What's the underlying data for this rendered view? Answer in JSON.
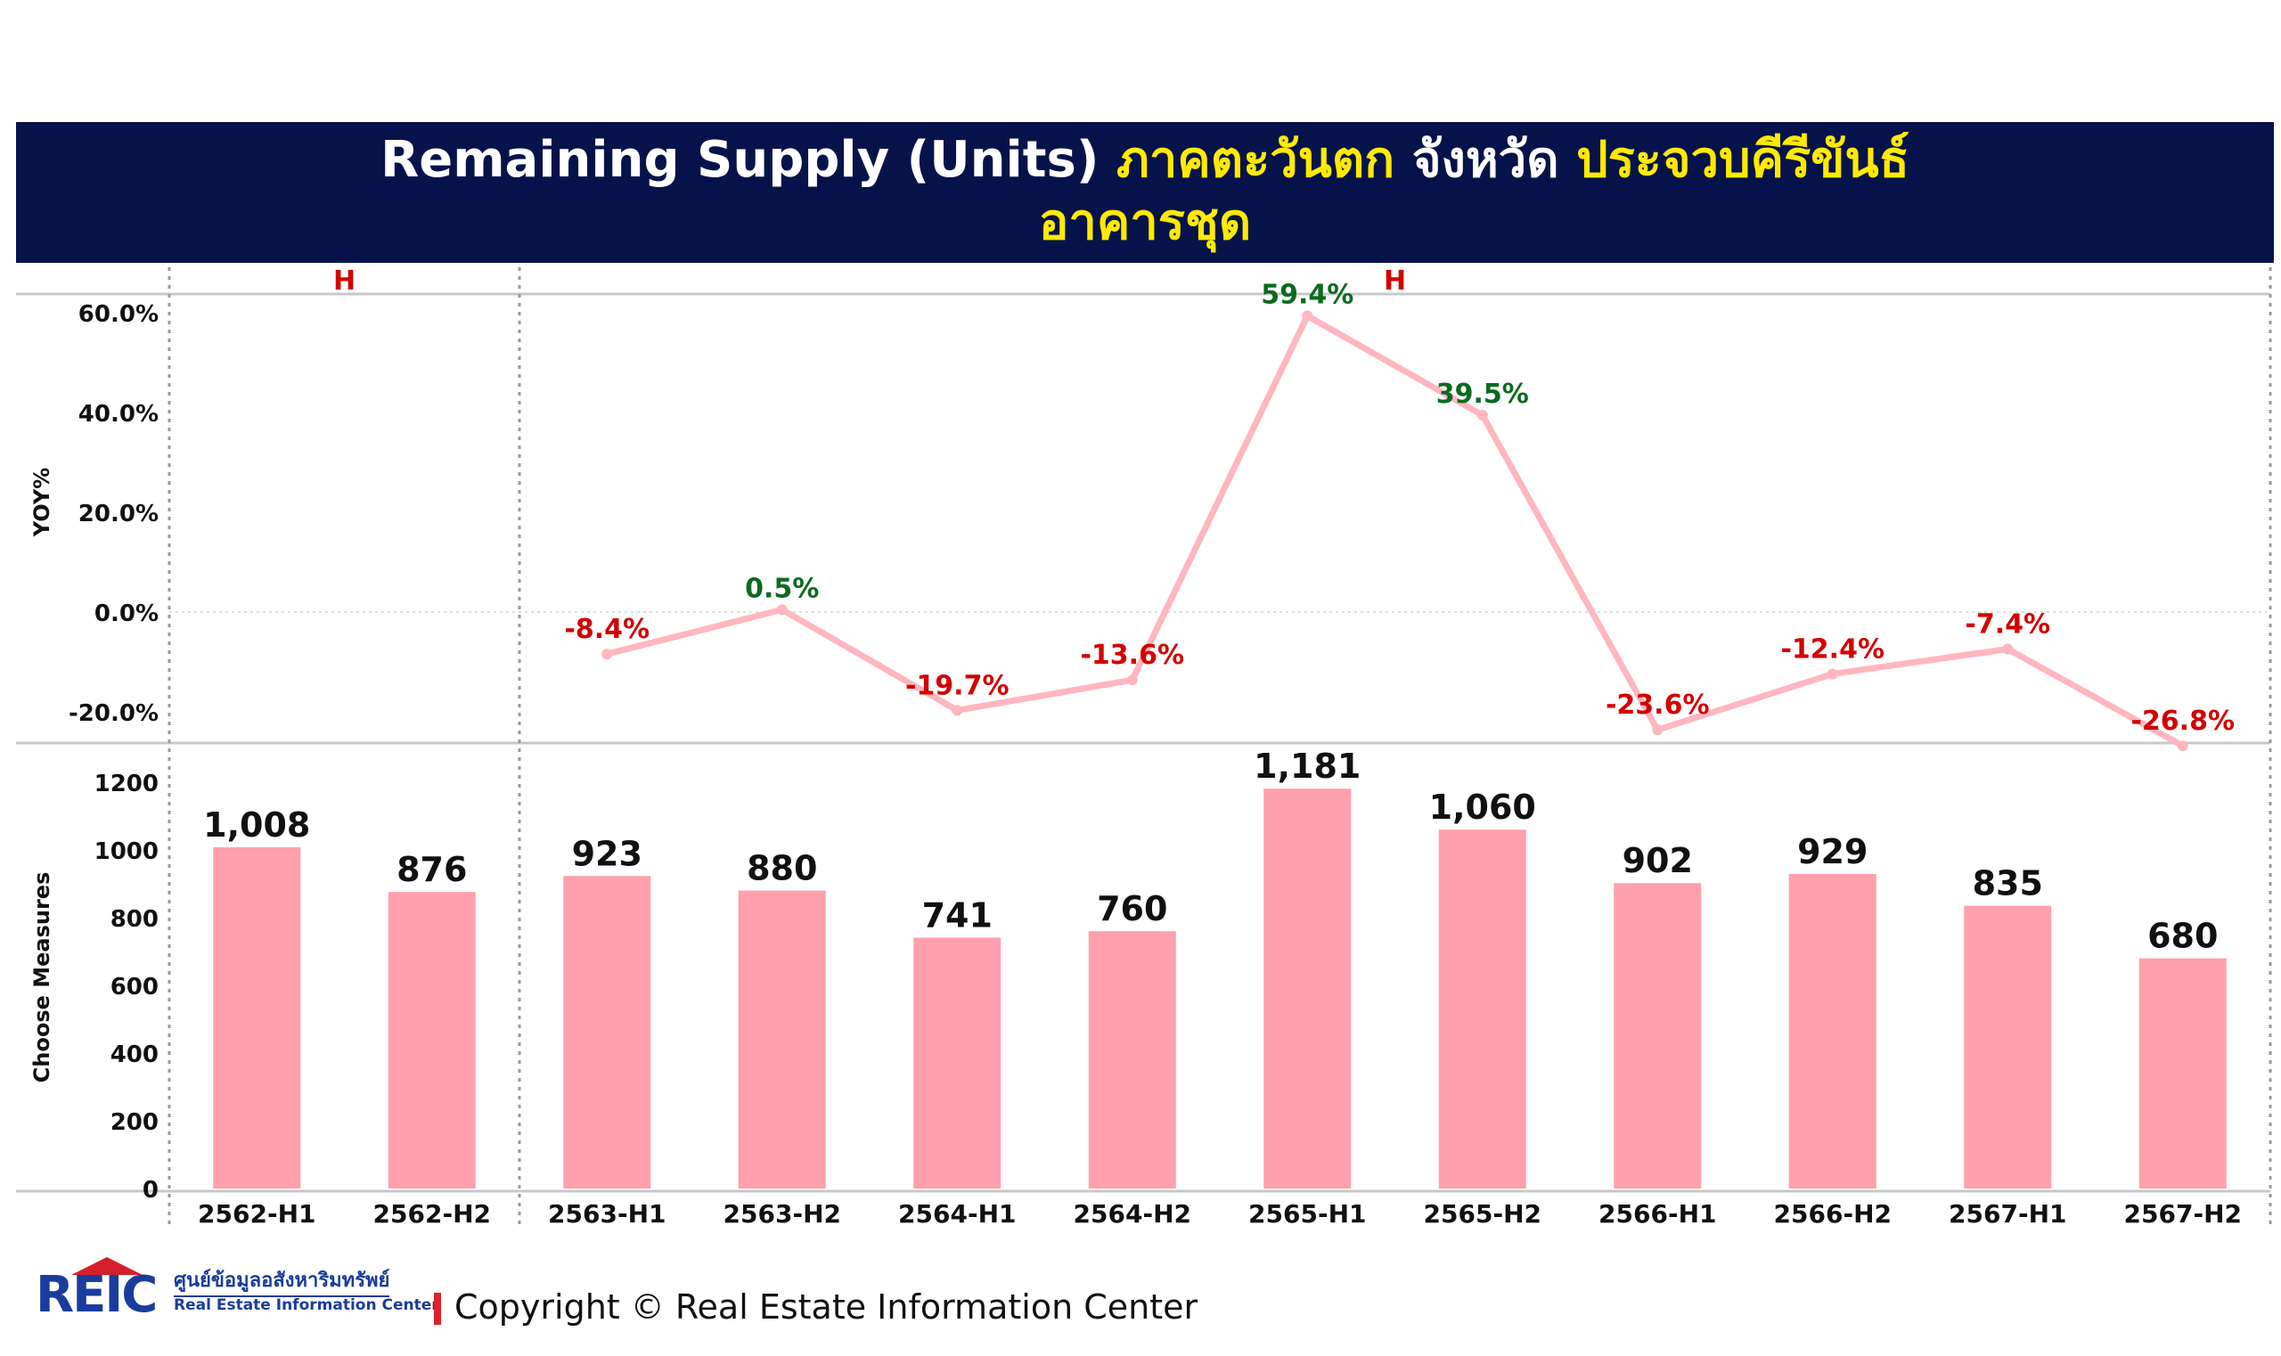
{
  "header": {
    "title_en": "Remaining Supply (Units)",
    "region": "ภาคตะวันตก",
    "province_label": "จังหวัด",
    "province": "ประจวบคีรีขันธ์",
    "property_type": "อาคารชุด"
  },
  "footer": {
    "logo_mark": "REIC",
    "logo_thai": "ศูนย์ข้อมูลอสังหาริมทรัพย์",
    "logo_en": "Real Estate Information Center",
    "copyright": "Copyright © Real Estate Information Center"
  },
  "colors": {
    "header_bg": "#06134a",
    "bar": "#ffa0ac",
    "line": "#ffb6c1",
    "positive_label": "#0a6b1f",
    "negative_label": "#d40000",
    "group_label": "#d40000"
  },
  "chart_data": [
    {
      "type": "line",
      "ylabel": "YOY%",
      "ylim": [
        -25,
        62
      ],
      "yticks": [
        "60.0%",
        "40.0%",
        "20.0%",
        "0.0%",
        "-20.0%"
      ],
      "ytick_values": [
        60,
        40,
        20,
        0,
        -20
      ],
      "group_labels": [
        "H",
        "H"
      ],
      "categories": [
        "2562-H1",
        "2562-H2",
        "2563-H1",
        "2563-H2",
        "2564-H1",
        "2564-H2",
        "2565-H1",
        "2565-H2",
        "2566-H1",
        "2566-H2",
        "2567-H1",
        "2567-H2"
      ],
      "values": [
        null,
        null,
        -8.4,
        0.5,
        -19.7,
        -13.6,
        59.4,
        39.5,
        -23.6,
        -12.4,
        -7.4,
        -26.8
      ],
      "labels": [
        "",
        "",
        "-8.4%",
        "0.5%",
        "-19.7%",
        "-13.6%",
        "59.4%",
        "39.5%",
        "-23.6%",
        "-12.4%",
        "-7.4%",
        "-26.8%"
      ]
    },
    {
      "type": "bar",
      "ylabel": "Choose Measures",
      "ylim": [
        0,
        1300
      ],
      "yticks": [
        "1200",
        "1000",
        "800",
        "600",
        "400",
        "200",
        "0"
      ],
      "ytick_values": [
        1200,
        1000,
        800,
        600,
        400,
        200,
        0
      ],
      "categories": [
        "2562-H1",
        "2562-H2",
        "2563-H1",
        "2563-H2",
        "2564-H1",
        "2564-H2",
        "2565-H1",
        "2565-H2",
        "2566-H1",
        "2566-H2",
        "2567-H1",
        "2567-H2"
      ],
      "values": [
        1008,
        876,
        923,
        880,
        741,
        760,
        1181,
        1060,
        902,
        929,
        835,
        680
      ],
      "labels": [
        "1,008",
        "876",
        "923",
        "880",
        "741",
        "760",
        "1,181",
        "1,060",
        "902",
        "929",
        "835",
        "680"
      ]
    }
  ]
}
